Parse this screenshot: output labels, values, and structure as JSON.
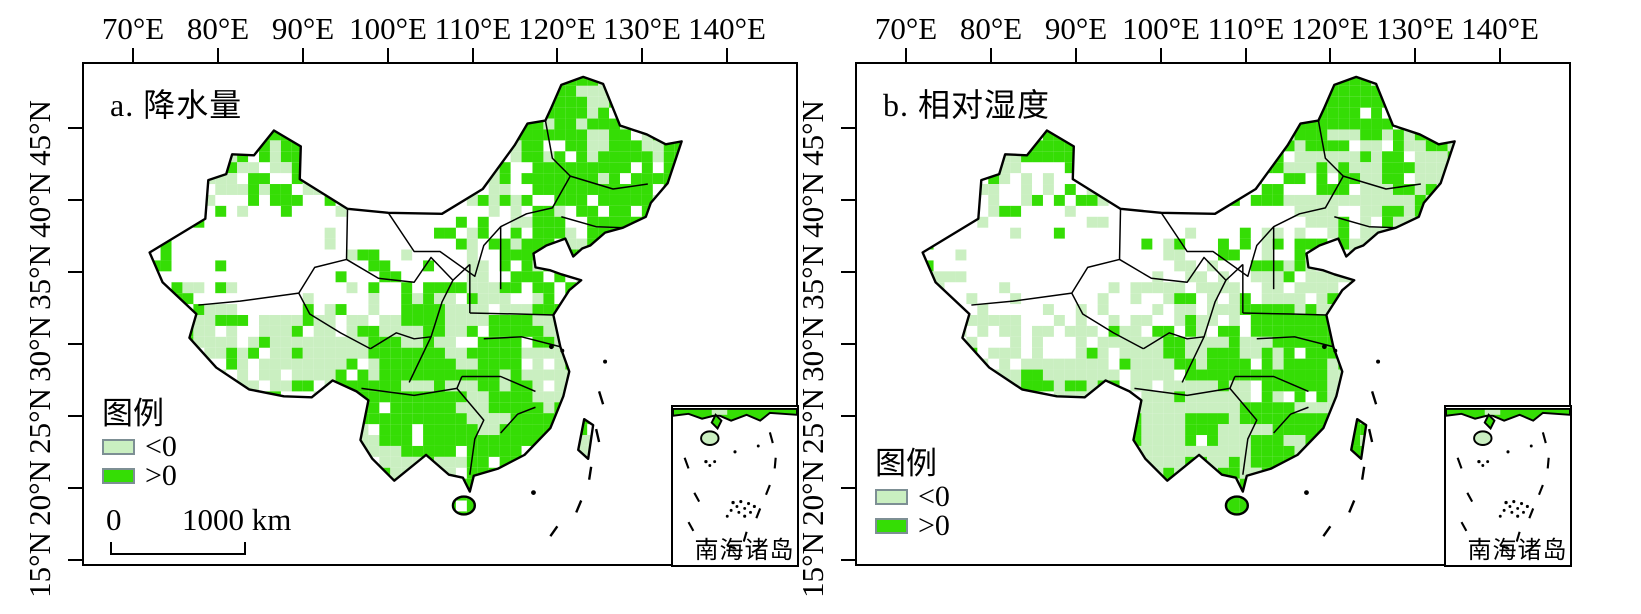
{
  "colors": {
    "positive": "#35dd05",
    "negative": "#caefc1",
    "boundary": "#000000",
    "swatch_border": "#7d8f94",
    "background": "#ffffff"
  },
  "axes": {
    "lon": [
      "70°E",
      "80°E",
      "90°E",
      "100°E",
      "110°E",
      "120°E",
      "130°E",
      "140°E"
    ],
    "lat": [
      "45°N",
      "40°N",
      "35°N",
      "30°N",
      "25°N",
      "20°N",
      "15°N"
    ]
  },
  "panels": [
    {
      "label": "a. 降水量",
      "raster": {
        "seed": 20177,
        "light_base": 0.24,
        "light_spots": [
          [
            0.25,
            0.55,
            0.45,
            0.1
          ],
          [
            0.55,
            0.35,
            0.2,
            0.1
          ],
          [
            0.66,
            0.62,
            0.22,
            0.1
          ]
        ]
      }
    },
    {
      "label": "b. 相对湿度",
      "raster": {
        "seed": 8841,
        "light_base": 0.28,
        "light_spots": [
          [
            0.28,
            0.5,
            0.55,
            0.16
          ],
          [
            0.18,
            0.42,
            0.45,
            0.1
          ],
          [
            0.68,
            0.5,
            0.25,
            0.12
          ]
        ]
      }
    }
  ],
  "legend": {
    "title": "图例",
    "items": [
      {
        "label": "<0",
        "color_key": "negative"
      },
      {
        "label": ">0",
        "color_key": "positive"
      }
    ]
  },
  "scalebar": {
    "zero": "0",
    "distance": "1000 km"
  },
  "inset": {
    "label": "南海诸岛"
  },
  "chart_data": {
    "type": "map",
    "region": "China",
    "panels": [
      "a. 降水量",
      "b. 相对湿度"
    ],
    "legend_title": "图例",
    "legend_classes": [
      "<0",
      ">0"
    ],
    "lon_ticks": [
      "70°E",
      "80°E",
      "90°E",
      "100°E",
      "110°E",
      "120°E",
      "130°E",
      "140°E"
    ],
    "lat_ticks": [
      "45°N",
      "40°N",
      "35°N",
      "30°N",
      "25°N",
      "20°N",
      "15°N"
    ],
    "scalebar": "0 – 1000 km",
    "inset_label": "南海诸岛"
  }
}
